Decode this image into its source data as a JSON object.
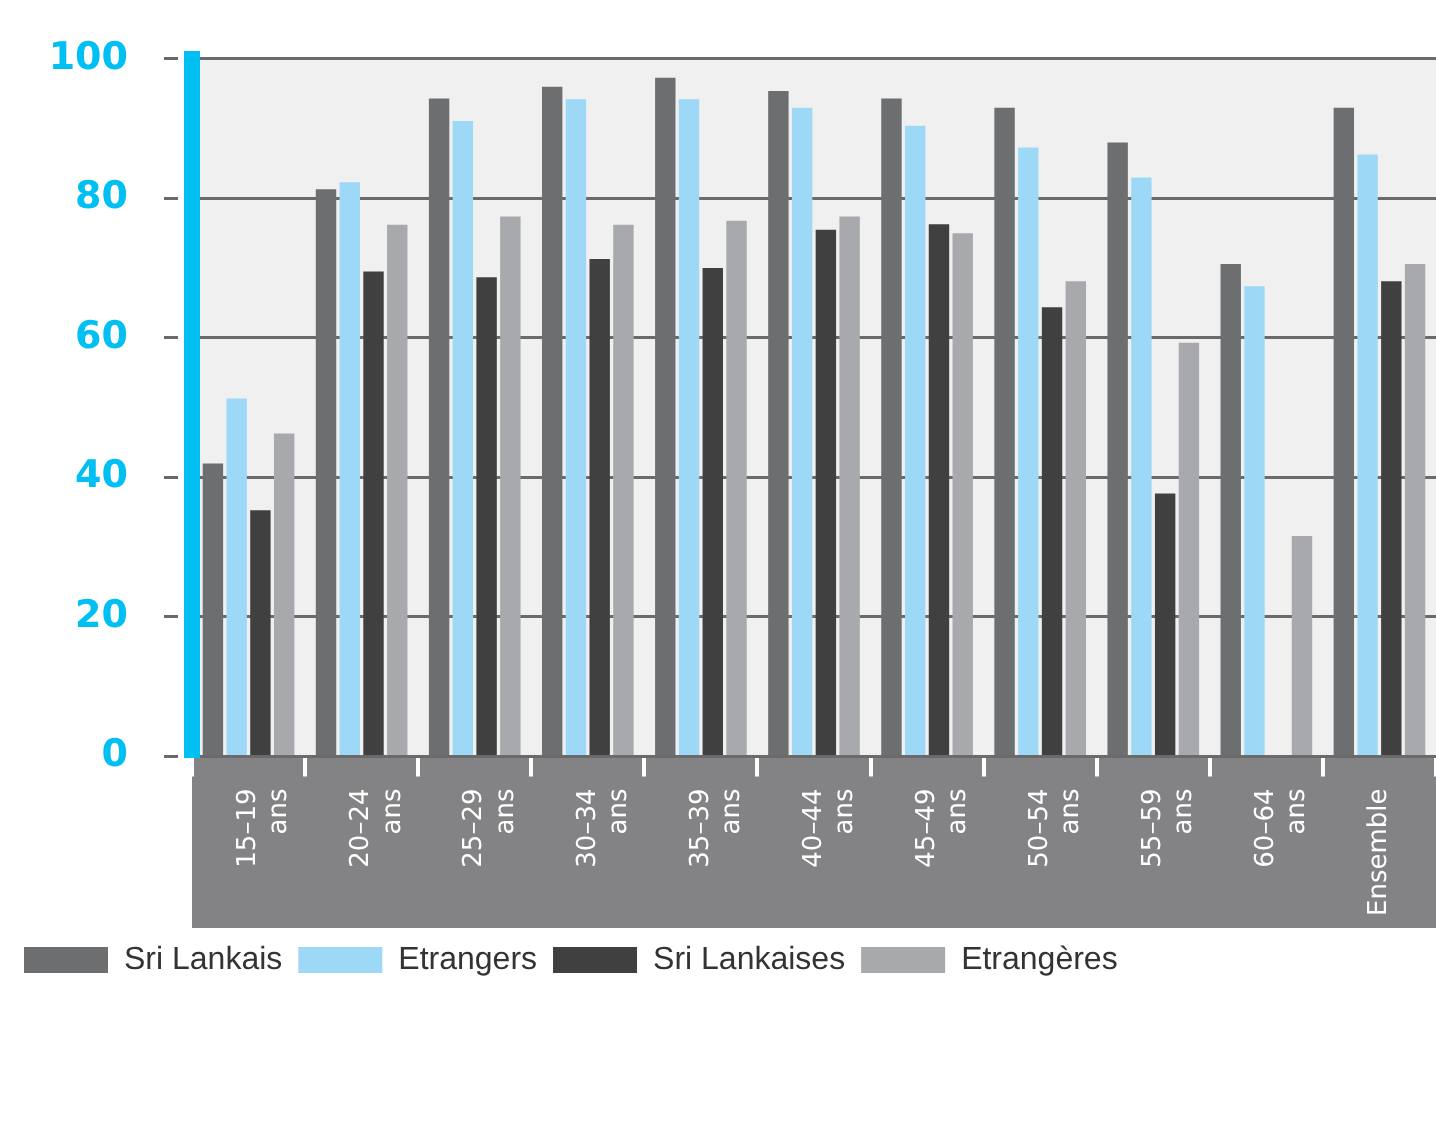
{
  "chart_data": {
    "type": "bar",
    "categories": [
      "15–19 ans",
      "20–24 ans",
      "25–29 ans",
      "30–34 ans",
      "35–39 ans",
      "40–44 ans",
      "45–49 ans",
      "50–54 ans",
      "55–59 ans",
      "60–64 ans",
      "Ensemble"
    ],
    "series": [
      {
        "name": "Sri Lankais",
        "color": "#6d6e70",
        "values": [
          42,
          81.3,
          94.3,
          96,
          97.3,
          95.4,
          94.3,
          93,
          88,
          70.6,
          93
        ]
      },
      {
        "name": "Etrangers",
        "color": "#9dd9f7",
        "values": [
          51.3,
          82.3,
          91.1,
          94.2,
          94.2,
          93,
          90.4,
          87.3,
          83,
          67.4,
          86.3
        ]
      },
      {
        "name": "Sri Lankaises",
        "color": "#404040",
        "values": [
          35.3,
          69.5,
          68.7,
          71.3,
          70,
          75.5,
          76.3,
          64.4,
          37.7,
          null,
          68.1
        ]
      },
      {
        "name": "Etrangères",
        "color": "#a7a9ac",
        "values": [
          46.3,
          76.2,
          77.4,
          76.2,
          76.8,
          77.4,
          75,
          68.1,
          59.3,
          31.6,
          70.6
        ]
      }
    ],
    "ylim": [
      0,
      100
    ],
    "yticks": [
      0,
      20,
      40,
      60,
      80,
      100
    ],
    "grid": "y",
    "legend": "bottom left"
  }
}
